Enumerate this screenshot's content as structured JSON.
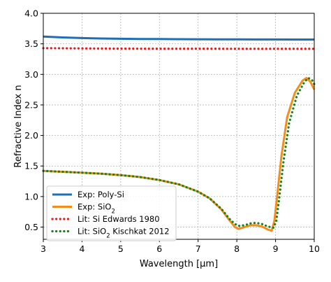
{
  "chart_data": {
    "type": "line",
    "xlabel_parts": [
      "Wavelength [",
      "μ",
      "m]"
    ],
    "ylabel": "Refractive Index n",
    "xlim": [
      3,
      10
    ],
    "ylim": [
      0.3,
      4.0
    ],
    "xticks": [
      "3",
      "4",
      "5",
      "6",
      "7",
      "8",
      "9",
      "10"
    ],
    "yticks": [
      "0.5",
      "1.0",
      "1.5",
      "2.0",
      "2.5",
      "3.0",
      "3.5",
      "4.0"
    ],
    "grid": true,
    "legend_placement": "lower-left",
    "series": [
      {
        "name_parts": [
          "Exp: Poly-Si"
        ],
        "color": "#1f6fb5",
        "style": "solid",
        "x": [
          3.0,
          3.5,
          4.0,
          4.5,
          5.0,
          5.5,
          6.0,
          6.5,
          7.0,
          7.5,
          8.0,
          8.5,
          9.0,
          9.5,
          10.0
        ],
        "y": [
          3.62,
          3.605,
          3.595,
          3.588,
          3.583,
          3.58,
          3.578,
          3.576,
          3.575,
          3.574,
          3.573,
          3.572,
          3.572,
          3.571,
          3.571
        ]
      },
      {
        "name_parts": [
          "Exp: SiO",
          "2",
          ""
        ],
        "color": "#f28e1c",
        "style": "solid",
        "x": [
          3.0,
          3.5,
          4.0,
          4.5,
          5.0,
          5.5,
          6.0,
          6.5,
          7.0,
          7.3,
          7.6,
          7.8,
          7.95,
          8.05,
          8.2,
          8.35,
          8.5,
          8.65,
          8.8,
          8.9,
          8.97,
          9.05,
          9.15,
          9.3,
          9.5,
          9.7,
          9.8,
          9.9,
          10.0
        ],
        "y": [
          1.42,
          1.405,
          1.39,
          1.375,
          1.35,
          1.32,
          1.27,
          1.2,
          1.08,
          0.97,
          0.79,
          0.62,
          0.5,
          0.47,
          0.5,
          0.53,
          0.53,
          0.51,
          0.46,
          0.44,
          0.6,
          1.05,
          1.65,
          2.3,
          2.7,
          2.9,
          2.94,
          2.88,
          2.75
        ]
      },
      {
        "name_parts": [
          "Lit: Si Edwards 1980"
        ],
        "color": "#e31a1c",
        "style": "dotted",
        "x": [
          3.0,
          4.0,
          5.0,
          6.0,
          7.0,
          8.0,
          9.0,
          10.0
        ],
        "y": [
          3.43,
          3.425,
          3.422,
          3.42,
          3.42,
          3.419,
          3.419,
          3.418
        ]
      },
      {
        "name_parts": [
          "Lit: SiO",
          "2",
          " Kischkat 2012"
        ],
        "color": "#16801c",
        "style": "dotted",
        "x": [
          3.0,
          3.5,
          4.0,
          4.5,
          5.0,
          5.5,
          6.0,
          6.5,
          7.0,
          7.3,
          7.6,
          7.8,
          7.95,
          8.05,
          8.2,
          8.35,
          8.5,
          8.65,
          8.8,
          8.95,
          9.02,
          9.1,
          9.2,
          9.35,
          9.55,
          9.75,
          9.85,
          9.95,
          10.0
        ],
        "y": [
          1.42,
          1.405,
          1.39,
          1.375,
          1.35,
          1.32,
          1.27,
          1.2,
          1.08,
          0.97,
          0.8,
          0.64,
          0.55,
          0.52,
          0.53,
          0.56,
          0.57,
          0.55,
          0.51,
          0.49,
          0.6,
          1.0,
          1.55,
          2.2,
          2.65,
          2.88,
          2.94,
          2.9,
          2.84
        ]
      }
    ]
  }
}
